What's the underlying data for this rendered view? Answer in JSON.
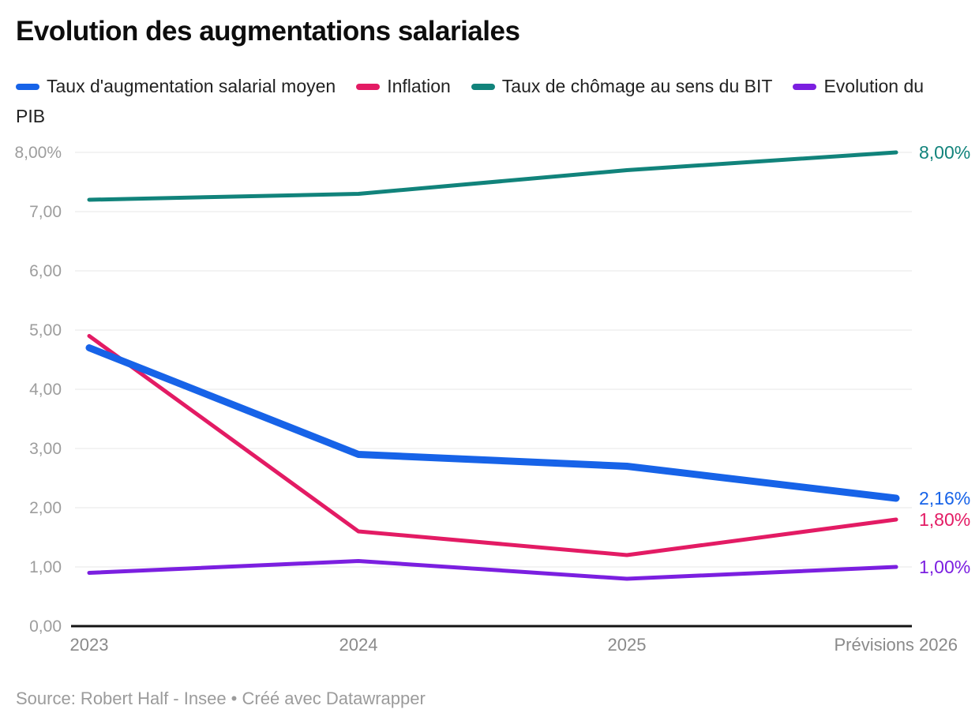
{
  "title": "Evolution des augmentations salariales",
  "footer": {
    "source_text": "Source: Robert Half - Insee • Créé avec Datawrapper"
  },
  "chart_data": {
    "type": "line",
    "title": "Evolution des augmentations salariales",
    "x": [
      "2023",
      "2024",
      "2025",
      "Prévisions 2026"
    ],
    "series": [
      {
        "name": "Taux d'augmentation salarial moyen",
        "color": "#1763e8",
        "line_width": 9,
        "values": [
          4.7,
          2.9,
          2.7,
          2.16
        ],
        "end_label": "2,16%"
      },
      {
        "name": "Inflation",
        "color": "#e31b64",
        "line_width": 5,
        "values": [
          4.9,
          1.6,
          1.2,
          1.8
        ],
        "end_label": "1,80%"
      },
      {
        "name": "Taux de chômage au sens du BIT",
        "color": "#11837b",
        "line_width": 5,
        "values": [
          7.2,
          7.3,
          7.7,
          8.0
        ],
        "end_label": "8,00%"
      },
      {
        "name": "Evolution du PIB",
        "color": "#7b1fe0",
        "line_width": 5,
        "values": [
          0.9,
          1.1,
          0.8,
          1.0
        ],
        "end_label": "1,00%"
      }
    ],
    "y_ticks": [
      {
        "v": 0,
        "label": "0,00"
      },
      {
        "v": 1,
        "label": "1,00"
      },
      {
        "v": 2,
        "label": "2,00"
      },
      {
        "v": 3,
        "label": "3,00"
      },
      {
        "v": 4,
        "label": "4,00"
      },
      {
        "v": 5,
        "label": "5,00"
      },
      {
        "v": 6,
        "label": "6,00"
      },
      {
        "v": 7,
        "label": "7,00"
      },
      {
        "v": 8,
        "label": "8,00%"
      }
    ],
    "ylim": [
      0,
      8
    ],
    "grid": true,
    "legend_position": "top",
    "colors": {
      "gridline": "#e7e7e7",
      "axis_line": "#141414",
      "tick_text": "#9d9d9d",
      "x_text": "#8a8a8a"
    }
  }
}
